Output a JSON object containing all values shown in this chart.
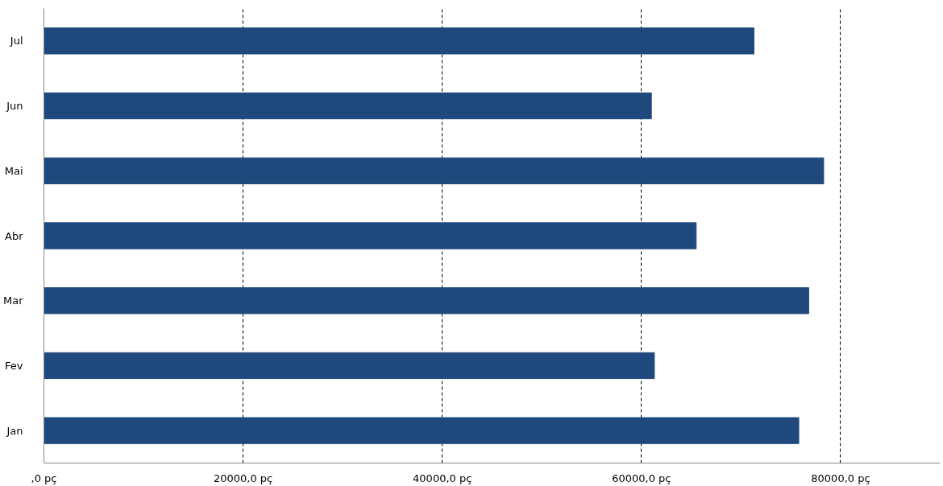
{
  "chart_data": {
    "type": "bar",
    "orientation": "horizontal",
    "categories": [
      "Jul",
      "Jun",
      "Mai",
      "Abr",
      "Mar",
      "Fev",
      "Jan"
    ],
    "values": [
      71300,
      61000,
      78300,
      65500,
      76800,
      61300,
      75800
    ],
    "color": "#1f497d",
    "xlim": [
      0,
      90000
    ],
    "xticks": [
      {
        "value": 0,
        "label": ",0 pç"
      },
      {
        "value": 20000,
        "label": "20000,0 pç"
      },
      {
        "value": 40000,
        "label": "40000,0 pç"
      },
      {
        "value": 60000,
        "label": "60000,0 pç"
      },
      {
        "value": 80000,
        "label": "80000,0 pç"
      }
    ],
    "grid": "x"
  }
}
